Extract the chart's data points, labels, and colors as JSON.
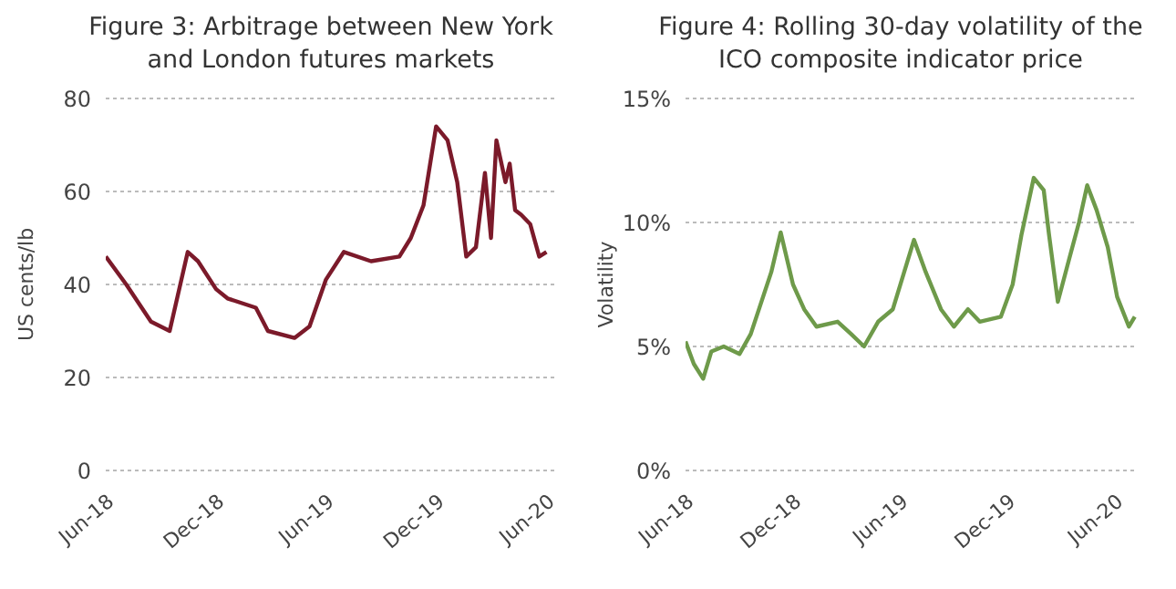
{
  "chart_data": [
    {
      "type": "line",
      "title": "Figure 3:  Arbitrage between New York and London futures markets",
      "ylabel": "US cents/lb",
      "x": [
        "2018-06-01",
        "2018-07-05",
        "2018-08-15",
        "2018-09-15",
        "2018-10-15",
        "2018-11-01",
        "2018-12-01",
        "2018-12-20",
        "2019-02-05",
        "2019-02-25",
        "2019-04-10",
        "2019-05-05",
        "2019-06-01",
        "2019-07-01",
        "2019-08-15",
        "2019-10-01",
        "2019-10-20",
        "2019-11-10",
        "2019-12-01",
        "2019-12-20",
        "2020-01-05",
        "2020-01-20",
        "2020-02-05",
        "2020-02-20",
        "2020-03-01",
        "2020-03-10",
        "2020-03-25",
        "2020-04-01",
        "2020-04-10",
        "2020-04-20",
        "2020-05-05",
        "2020-05-20",
        "2020-06-01"
      ],
      "values": [
        46,
        40,
        32,
        30,
        47,
        45,
        39,
        37,
        35,
        30,
        28.5,
        31,
        41,
        47,
        45,
        46,
        50,
        57,
        74,
        71,
        62,
        46,
        48,
        64,
        50,
        71,
        62,
        66,
        56,
        55,
        53,
        46,
        47
      ],
      "color": "#7b1a2a",
      "xlim": [
        "2018-06-01",
        "2020-06-20"
      ],
      "xticks": [
        {
          "value": "2018-06-01",
          "label": "Jun-18"
        },
        {
          "value": "2018-12-01",
          "label": "Dec-18"
        },
        {
          "value": "2019-06-01",
          "label": "Jun-19"
        },
        {
          "value": "2019-12-01",
          "label": "Dec-19"
        },
        {
          "value": "2020-06-01",
          "label": "Jun-20"
        }
      ],
      "ylim": [
        0,
        80
      ],
      "yticks": [
        0,
        20,
        40,
        60,
        80
      ],
      "grid": "y"
    },
    {
      "type": "line",
      "title": "Figure 4:  Rolling 30-day volatility of the ICO  composite indicator price",
      "ylabel": "Volatility",
      "x": [
        "2018-06-01",
        "2018-06-15",
        "2018-07-01",
        "2018-07-15",
        "2018-08-05",
        "2018-09-01",
        "2018-09-20",
        "2018-10-25",
        "2018-11-10",
        "2018-12-01",
        "2018-12-20",
        "2019-01-10",
        "2019-02-15",
        "2019-03-10",
        "2019-04-01",
        "2019-04-25",
        "2019-05-20",
        "2019-06-25",
        "2019-07-15",
        "2019-08-10",
        "2019-09-01",
        "2019-09-25",
        "2019-10-15",
        "2019-11-20",
        "2019-12-10",
        "2019-12-25",
        "2020-01-15",
        "2020-02-01",
        "2020-02-10",
        "2020-02-25",
        "2020-03-15",
        "2020-04-01",
        "2020-04-15",
        "2020-05-01",
        "2020-05-20",
        "2020-06-05",
        "2020-06-25",
        "2020-07-05"
      ],
      "values": [
        5.2,
        4.3,
        3.7,
        4.8,
        5.0,
        4.7,
        5.5,
        8.0,
        9.6,
        7.5,
        6.5,
        5.8,
        6.0,
        5.5,
        5.0,
        6.0,
        6.5,
        9.3,
        8.0,
        6.5,
        5.8,
        6.5,
        6.0,
        6.2,
        7.5,
        9.5,
        11.8,
        11.3,
        9.5,
        6.8,
        8.5,
        10.0,
        11.5,
        10.5,
        9.0,
        7.0,
        5.8,
        6.2
      ],
      "color": "#6e9a4a",
      "xlim": [
        "2018-06-01",
        "2020-07-10"
      ],
      "xticks": [
        {
          "value": "2018-06-01",
          "label": "Jun-18"
        },
        {
          "value": "2018-12-01",
          "label": "Dec-18"
        },
        {
          "value": "2019-06-01",
          "label": "Jun-19"
        },
        {
          "value": "2019-12-01",
          "label": "Dec-19"
        },
        {
          "value": "2020-06-01",
          "label": "Jun-20"
        }
      ],
      "ylim": [
        0,
        15
      ],
      "yticks": [
        {
          "value": 0,
          "label": "0%"
        },
        {
          "value": 5,
          "label": "5%"
        },
        {
          "value": 10,
          "label": "10%"
        },
        {
          "value": 15,
          "label": "15%"
        }
      ],
      "grid": "y"
    }
  ]
}
